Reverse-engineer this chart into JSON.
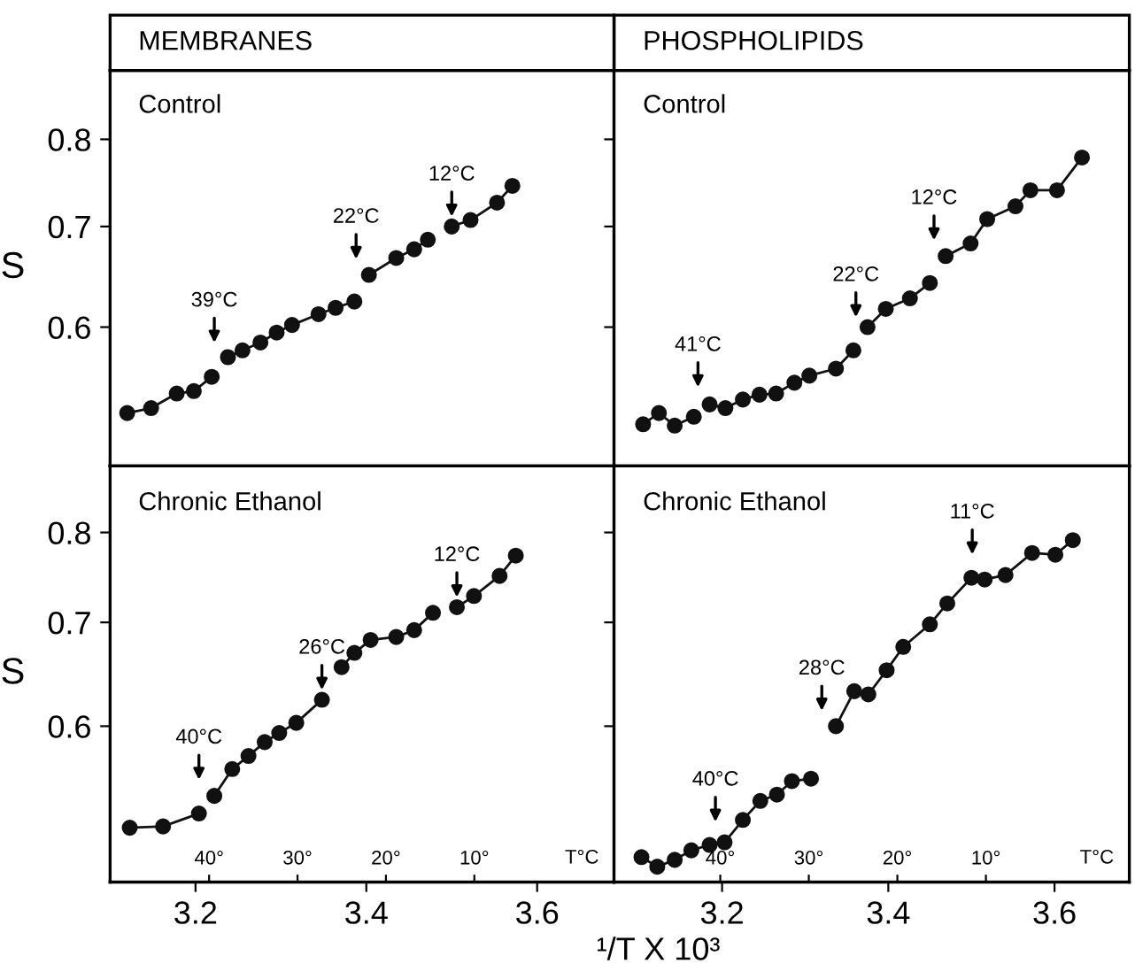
{
  "chart_data": [
    {
      "type": "line",
      "title": "MEMBRANES",
      "subtitle": "Control",
      "ylabel": "S",
      "log": "y",
      "marker": "circle",
      "line_style": "solid",
      "tick_labels": "y",
      "xlim": [
        3.1,
        3.69
      ],
      "ylim": [
        0.485,
        0.889
      ],
      "xticks": [
        3.2,
        3.4,
        3.6
      ],
      "yticks": [
        0.6,
        0.7,
        0.8
      ],
      "series": [
        {
          "color": "#111111",
          "x": [
            3.12,
            3.148,
            3.178,
            3.198,
            3.219
          ],
          "values": [
            0.526,
            0.53,
            0.542,
            0.544,
            0.556
          ]
        },
        {
          "color": "#111111",
          "x": [
            3.238,
            3.255,
            3.276,
            3.295,
            3.313,
            3.344,
            3.364,
            3.386
          ],
          "values": [
            0.573,
            0.579,
            0.586,
            0.595,
            0.602,
            0.612,
            0.618,
            0.624
          ]
        },
        {
          "color": "#111111",
          "x": [
            3.403,
            3.435,
            3.456,
            3.472
          ],
          "values": [
            0.65,
            0.667,
            0.676,
            0.686
          ]
        },
        {
          "color": "#111111",
          "x": [
            3.5,
            3.522,
            3.553,
            3.571
          ],
          "values": [
            0.7,
            0.707,
            0.726,
            0.745
          ]
        }
      ],
      "annotations": [
        {
          "text": "39°C",
          "x": 3.222,
          "y": 0.577
        },
        {
          "text": "22°C",
          "x": 3.388,
          "y": 0.656
        },
        {
          "text": "12°C",
          "x": 3.5,
          "y": 0.7
        }
      ]
    },
    {
      "type": "line",
      "title": "PHOSPHOLIPIDS",
      "subtitle": "Control",
      "log": "y",
      "marker": "circle",
      "line_style": "solid",
      "tick_labels": false,
      "xlim": [
        3.07,
        3.69
      ],
      "ylim": [
        0.485,
        0.889
      ],
      "xticks": [
        3.2,
        3.4,
        3.6
      ],
      "yticks": [
        0.6,
        0.7,
        0.8
      ],
      "series": [
        {
          "color": "#111111",
          "x": [
            3.105,
            3.124,
            3.143,
            3.166
          ],
          "values": [
            0.517,
            0.526,
            0.516,
            0.523
          ]
        },
        {
          "color": "#111111",
          "x": [
            3.185,
            3.204,
            3.225,
            3.245,
            3.265,
            3.287,
            3.305,
            3.337,
            3.358
          ],
          "values": [
            0.533,
            0.53,
            0.537,
            0.541,
            0.542,
            0.551,
            0.557,
            0.563,
            0.579
          ]
        },
        {
          "color": "#111111",
          "x": [
            3.375,
            3.397,
            3.426,
            3.45
          ],
          "values": [
            0.6,
            0.617,
            0.627,
            0.642
          ]
        },
        {
          "color": "#111111",
          "x": [
            3.469,
            3.499,
            3.519,
            3.553,
            3.571,
            3.603,
            3.633
          ],
          "values": [
            0.669,
            0.682,
            0.708,
            0.722,
            0.74,
            0.74,
            0.778
          ]
        }
      ],
      "annotations": [
        {
          "text": "41°C",
          "x": 3.171,
          "y": 0.539
        },
        {
          "text": "22°C",
          "x": 3.361,
          "y": 0.6
        },
        {
          "text": "12°C",
          "x": 3.455,
          "y": 0.675
        }
      ]
    },
    {
      "type": "line",
      "subtitle": "Chronic Ethanol",
      "ylabel": "S",
      "xlabel": "¹/T X 10³",
      "log": "y",
      "marker": "circle",
      "line_style": "solid",
      "xlim": [
        3.1,
        3.69
      ],
      "ylim": [
        0.476,
        0.883
      ],
      "xticks": [
        3.2,
        3.4,
        3.6
      ],
      "yticks": [
        0.6,
        0.7,
        0.8
      ],
      "x2lim": [
        51.2,
        -5.8
      ],
      "x2ticks": [
        {
          "value": 40,
          "label": "40°"
        },
        {
          "value": 30,
          "label": "30°"
        },
        {
          "value": 20,
          "label": "20°"
        },
        {
          "value": 10,
          "label": "10°"
        }
      ],
      "x2label": "T°C",
      "series": [
        {
          "color": "#111111",
          "x": [
            3.123,
            3.162,
            3.204
          ],
          "values": [
            0.516,
            0.517,
            0.527
          ]
        },
        {
          "color": "#111111",
          "x": [
            3.222,
            3.243,
            3.262,
            3.281,
            3.298,
            3.318,
            3.348
          ],
          "values": [
            0.541,
            0.563,
            0.574,
            0.586,
            0.594,
            0.603,
            0.624
          ]
        },
        {
          "color": "#111111",
          "x": [
            3.371,
            3.386,
            3.405,
            3.435,
            3.456,
            3.478
          ],
          "values": [
            0.655,
            0.669,
            0.682,
            0.685,
            0.692,
            0.71
          ]
        },
        {
          "color": "#111111",
          "x": [
            3.506,
            3.526,
            3.556,
            3.575
          ],
          "values": [
            0.716,
            0.728,
            0.75,
            0.773
          ]
        }
      ],
      "annotations": [
        {
          "text": "40°C",
          "x": 3.204,
          "y": 0.546
        },
        {
          "text": "26°C",
          "x": 3.348,
          "y": 0.624
        },
        {
          "text": "12°C",
          "x": 3.506,
          "y": 0.716
        }
      ]
    },
    {
      "type": "line",
      "subtitle": "Chronic Ethanol",
      "log": "y",
      "marker": "circle",
      "line_style": "solid",
      "tick_labels": "x",
      "xlim": [
        3.07,
        3.69
      ],
      "ylim": [
        0.476,
        0.883
      ],
      "xticks": [
        3.2,
        3.4,
        3.6
      ],
      "yticks": [
        0.6,
        0.7,
        0.8
      ],
      "x2lim": [
        52.0,
        -6.2
      ],
      "x2ticks": [
        {
          "value": 40,
          "label": "40°"
        },
        {
          "value": 30,
          "label": "30°"
        },
        {
          "value": 20,
          "label": "20°"
        },
        {
          "value": 10,
          "label": "10°"
        }
      ],
      "x2label": "T°C",
      "series": [
        {
          "color": "#111111",
          "x": [
            3.103,
            3.122,
            3.143,
            3.163,
            3.185,
            3.203,
            3.225,
            3.246,
            3.266,
            3.284,
            3.307
          ],
          "values": [
            0.494,
            0.487,
            0.492,
            0.499,
            0.503,
            0.505,
            0.522,
            0.537,
            0.542,
            0.553,
            0.555
          ]
        },
        {
          "color": "#111111",
          "x": [
            3.337,
            3.359,
            3.376,
            3.398,
            3.418,
            3.45,
            3.471,
            3.5
          ],
          "values": [
            0.6,
            0.632,
            0.629,
            0.652,
            0.675,
            0.698,
            0.72,
            0.748
          ]
        },
        {
          "color": "#111111",
          "x": [
            3.516,
            3.541,
            3.573,
            3.601,
            3.622
          ],
          "values": [
            0.746,
            0.751,
            0.776,
            0.774,
            0.791
          ]
        }
      ],
      "annotations": [
        {
          "text": "40°C",
          "x": 3.192,
          "y": 0.513
        },
        {
          "text": "28°C",
          "x": 3.32,
          "y": 0.605
        },
        {
          "text": "11°C",
          "x": 3.501,
          "y": 0.763
        }
      ]
    }
  ]
}
